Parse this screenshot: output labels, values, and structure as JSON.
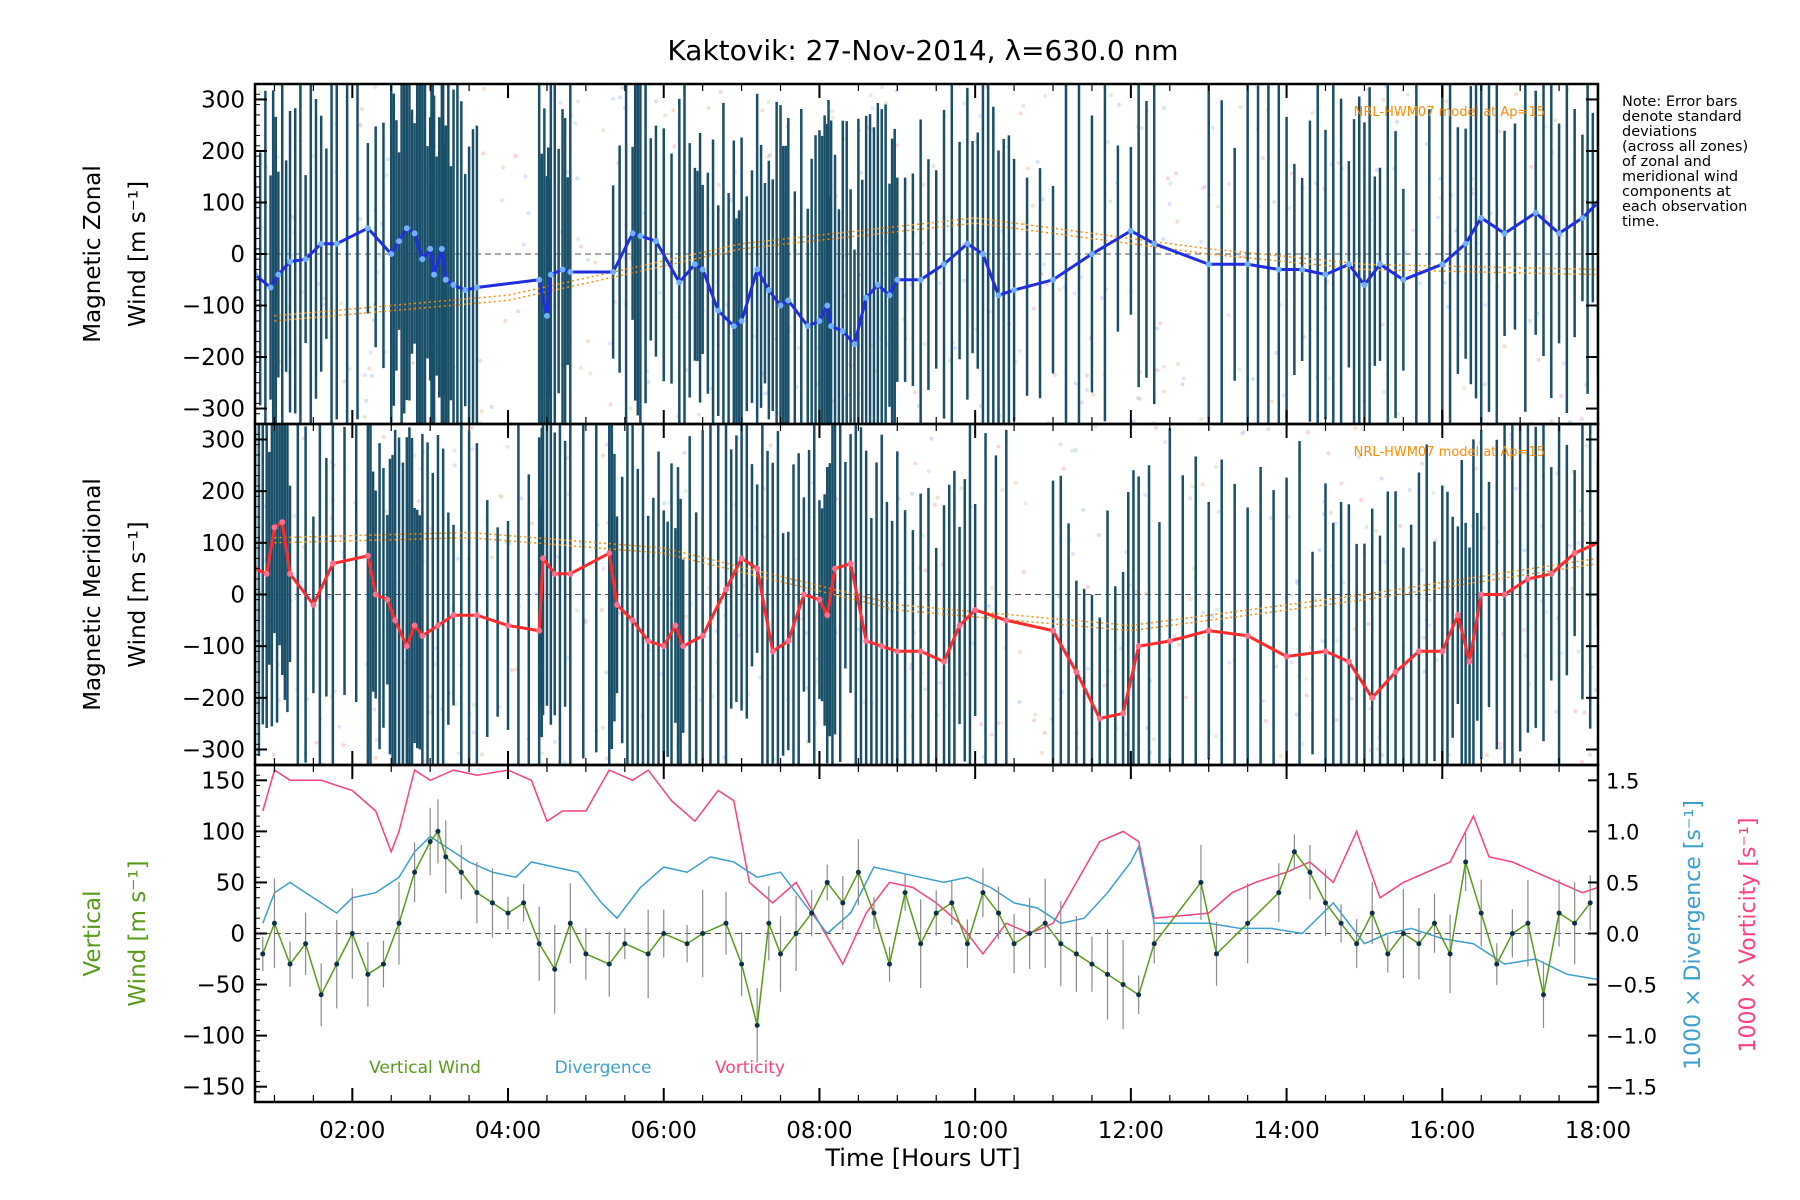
{
  "chart_data": {
    "title": "Kaktovik: 27-Nov-2014, λ=630.0 nm",
    "note": "Note: Error bars\ndenote standard\ndeviations\n(across all zones)\nof zonal and\nmeridional wind\ncomponents at\neach observation\ntime.",
    "xlabel": "Time [Hours UT]",
    "xlim_hours": [
      0.75,
      18.0
    ],
    "xticks": [
      "02:00",
      "04:00",
      "06:00",
      "08:00",
      "10:00",
      "12:00",
      "14:00",
      "16:00",
      "18:00"
    ],
    "colors": {
      "zonal": "#1f2fe0",
      "zonal_points": "#6fb0ff",
      "meridional": "#ff2a2a",
      "meridional_points": "#ff6f8a",
      "vertical": "#5a9a1a",
      "divergence": "#3aa0d0",
      "vorticity": "#ff3f7f",
      "errbar": "#1a4f6a",
      "model": "#ff8c00",
      "vert_err": "#8a8a8a"
    },
    "panels": [
      {
        "type": "line",
        "ylabel": [
          "Magnetic Zonal",
          "Wind [m s⁻¹]"
        ],
        "ylim": [
          -330,
          330
        ],
        "yticks": [
          "300",
          "200",
          "100",
          "0",
          "−100",
          "−200",
          "−300"
        ],
        "model_label": "NRL-HWM07 model at Ap=15",
        "series": [
          {
            "name": "Zonal wind",
            "x": [
              0.75,
              0.95,
              1.05,
              1.2,
              1.4,
              1.6,
              1.8,
              2.2,
              2.5,
              2.6,
              2.7,
              2.8,
              2.9,
              3.0,
              3.05,
              3.15,
              3.2,
              3.3,
              3.45,
              3.6,
              4.4,
              4.5,
              4.55,
              4.7,
              4.8,
              5.35,
              5.6,
              5.7,
              5.9,
              6.2,
              6.4,
              6.5,
              6.7,
              6.9,
              7.0,
              7.2,
              7.35,
              7.5,
              7.6,
              7.85,
              8.0,
              8.1,
              8.15,
              8.3,
              8.45,
              8.6,
              8.75,
              8.9,
              9.0,
              9.3,
              9.6,
              9.9,
              10.1,
              10.3,
              10.5,
              11.0,
              11.5,
              12.0,
              12.3,
              13.0,
              13.5,
              13.9,
              14.2,
              14.5,
              14.8,
              15.0,
              15.2,
              15.5,
              16.0,
              16.3,
              16.5,
              16.8,
              17.2,
              17.5,
              17.8,
              18.0
            ],
            "y": [
              -40,
              -65,
              -40,
              -15,
              -10,
              20,
              20,
              50,
              0,
              25,
              50,
              40,
              -10,
              10,
              -40,
              10,
              -50,
              -60,
              -70,
              -65,
              -50,
              -120,
              -40,
              -30,
              -35,
              -35,
              40,
              35,
              25,
              -55,
              -20,
              -30,
              -110,
              -140,
              -130,
              -30,
              -70,
              -100,
              -90,
              -140,
              -130,
              -100,
              -140,
              -150,
              -175,
              -85,
              -60,
              -80,
              -50,
              -50,
              -20,
              20,
              0,
              -80,
              -70,
              -50,
              0,
              45,
              20,
              -20,
              -20,
              -30,
              -30,
              -40,
              -20,
              -60,
              -20,
              -50,
              -20,
              20,
              70,
              40,
              80,
              40,
              70,
              100
            ]
          }
        ],
        "model_lines": [
          {
            "x": [
              1.0,
              4.0,
              7.0,
              10.0,
              13.0,
              15.0,
              18.0
            ],
            "y": [
              -120,
              -80,
              20,
              70,
              10,
              -20,
              -30
            ]
          },
          {
            "x": [
              1.0,
              4.0,
              7.0,
              10.0,
              13.0,
              15.0,
              18.0
            ],
            "y": [
              -130,
              -90,
              10,
              60,
              0,
              -30,
              -40
            ]
          }
        ]
      },
      {
        "type": "line",
        "ylabel": [
          "Magnetic Meridional",
          "Wind [m s⁻¹]"
        ],
        "ylim": [
          -330,
          330
        ],
        "yticks": [
          "300",
          "200",
          "100",
          "0",
          "−100",
          "−200",
          "−300"
        ],
        "model_label": "NRL-HWM07 model at Ap=15",
        "series": [
          {
            "name": "Meridional wind",
            "x": [
              0.75,
              0.9,
              1.0,
              1.1,
              1.2,
              1.5,
              1.75,
              2.2,
              2.3,
              2.45,
              2.55,
              2.7,
              2.8,
              2.9,
              3.1,
              3.3,
              3.6,
              4.0,
              4.4,
              4.45,
              4.6,
              4.8,
              5.3,
              5.4,
              5.6,
              5.8,
              6.0,
              6.15,
              6.25,
              6.5,
              6.8,
              7.0,
              7.2,
              7.4,
              7.6,
              7.8,
              8.0,
              8.1,
              8.2,
              8.4,
              8.6,
              8.8,
              9.0,
              9.3,
              9.6,
              9.8,
              10.0,
              10.4,
              11.0,
              11.3,
              11.6,
              11.9,
              12.1,
              12.5,
              13.0,
              13.5,
              14.0,
              14.5,
              14.8,
              15.1,
              15.4,
              15.7,
              16.0,
              16.2,
              16.35,
              16.5,
              16.8,
              17.1,
              17.4,
              17.7,
              18.0
            ],
            "y": [
              50,
              40,
              130,
              140,
              40,
              -20,
              60,
              75,
              0,
              -10,
              -50,
              -100,
              -60,
              -80,
              -60,
              -40,
              -40,
              -60,
              -70,
              70,
              40,
              40,
              80,
              -20,
              -50,
              -90,
              -100,
              -60,
              -100,
              -80,
              10,
              70,
              50,
              -110,
              -90,
              0,
              -10,
              -40,
              50,
              60,
              -90,
              -100,
              -110,
              -110,
              -130,
              -60,
              -30,
              -50,
              -70,
              -150,
              -240,
              -230,
              -100,
              -90,
              -70,
              -80,
              -120,
              -110,
              -130,
              -200,
              -150,
              -110,
              -110,
              -40,
              -130,
              0,
              0,
              30,
              40,
              80,
              100
            ]
          }
        ],
        "model_lines": [
          {
            "x": [
              1.0,
              3.5,
              6.0,
              9.0,
              12.0,
              15.0,
              18.0
            ],
            "y": [
              100,
              110,
              80,
              -30,
              -70,
              -10,
              60
            ]
          },
          {
            "x": [
              1.0,
              3.5,
              6.0,
              9.0,
              12.0,
              15.0,
              18.0
            ],
            "y": [
              110,
              120,
              90,
              -20,
              -60,
              0,
              70
            ]
          }
        ]
      },
      {
        "type": "line",
        "ylabel": [
          "Vertical",
          "Wind [m s⁻¹]"
        ],
        "ylim": [
          -165,
          165
        ],
        "yticks": [
          "150",
          "100",
          "50",
          "0",
          "−50",
          "−100",
          "−150"
        ],
        "y2label_div": "1000 × Divergence [s⁻¹]",
        "y2label_vor": "1000 × Vorticity [s⁻¹]",
        "y2lim": [
          -1.65,
          1.65
        ],
        "y2ticks": [
          "1.5",
          "1.0",
          "0.5",
          "0.0",
          "−0.5",
          "−1.0",
          "−1.5"
        ],
        "legend": [
          "Vertical Wind",
          "Divergence",
          "Vorticity"
        ],
        "series": [
          {
            "name": "Vertical Wind",
            "x": [
              0.85,
              1.0,
              1.2,
              1.4,
              1.6,
              1.8,
              2.0,
              2.2,
              2.4,
              2.6,
              2.8,
              3.0,
              3.1,
              3.2,
              3.4,
              3.6,
              3.8,
              4.0,
              4.2,
              4.4,
              4.6,
              4.8,
              5.0,
              5.3,
              5.5,
              5.8,
              6.0,
              6.3,
              6.5,
              6.8,
              7.0,
              7.2,
              7.35,
              7.5,
              7.7,
              7.9,
              8.1,
              8.3,
              8.5,
              8.7,
              8.9,
              9.1,
              9.3,
              9.5,
              9.7,
              9.9,
              10.1,
              10.3,
              10.5,
              10.7,
              10.9,
              11.1,
              11.3,
              11.5,
              11.7,
              11.9,
              12.1,
              12.3,
              12.9,
              13.1,
              13.5,
              13.9,
              14.1,
              14.3,
              14.5,
              14.7,
              14.9,
              15.1,
              15.3,
              15.5,
              15.7,
              15.9,
              16.1,
              16.3,
              16.5,
              16.7,
              16.9,
              17.1,
              17.3,
              17.5,
              17.7,
              17.9
            ],
            "y": [
              -20,
              10,
              -30,
              -10,
              -60,
              -30,
              0,
              -40,
              -30,
              10,
              60,
              90,
              100,
              75,
              60,
              40,
              30,
              20,
              30,
              -10,
              -35,
              10,
              -20,
              -30,
              -10,
              -20,
              0,
              -10,
              0,
              10,
              -30,
              -90,
              10,
              -20,
              0,
              20,
              50,
              30,
              60,
              20,
              -30,
              40,
              -10,
              20,
              30,
              -10,
              40,
              20,
              -10,
              0,
              10,
              -10,
              -20,
              -30,
              -40,
              -50,
              -60,
              -10,
              50,
              -20,
              10,
              40,
              80,
              60,
              30,
              10,
              -10,
              20,
              -20,
              0,
              -10,
              10,
              -20,
              70,
              20,
              -30,
              0,
              10,
              -60,
              20,
              10,
              30
            ]
          },
          {
            "name": "Divergence",
            "x": [
              0.85,
              1.0,
              1.2,
              1.4,
              1.6,
              1.8,
              2.0,
              2.3,
              2.6,
              2.8,
              3.0,
              3.2,
              3.5,
              3.8,
              4.1,
              4.3,
              4.6,
              4.9,
              5.2,
              5.4,
              5.7,
              6.0,
              6.3,
              6.6,
              6.9,
              7.2,
              7.5,
              7.8,
              8.1,
              8.4,
              8.7,
              9.0,
              9.3,
              9.6,
              9.9,
              10.2,
              10.5,
              10.8,
              11.1,
              11.4,
              11.7,
              12.0,
              12.1,
              12.3,
              12.6,
              13.0,
              13.4,
              13.8,
              14.2,
              14.6,
              15.0,
              15.3,
              15.6,
              16.0,
              16.4,
              16.8,
              17.2,
              17.6,
              18.0
            ],
            "y": [
              0.1,
              0.4,
              0.5,
              0.4,
              0.3,
              0.2,
              0.35,
              0.4,
              0.55,
              0.8,
              0.95,
              0.85,
              0.7,
              0.6,
              0.55,
              0.7,
              0.65,
              0.6,
              0.3,
              0.15,
              0.45,
              0.65,
              0.6,
              0.75,
              0.7,
              0.55,
              0.6,
              0.3,
              0.0,
              0.2,
              0.65,
              0.6,
              0.55,
              0.5,
              0.55,
              0.45,
              0.3,
              0.25,
              0.1,
              0.15,
              0.4,
              0.7,
              0.85,
              0.1,
              0.1,
              0.1,
              0.05,
              0.05,
              0.0,
              0.3,
              -0.1,
              0.0,
              0.05,
              -0.05,
              -0.1,
              -0.3,
              -0.25,
              -0.4,
              -0.45
            ]
          },
          {
            "name": "Vorticity",
            "x": [
              0.85,
              1.0,
              1.2,
              1.6,
              2.0,
              2.3,
              2.5,
              2.6,
              2.8,
              3.0,
              3.3,
              3.6,
              4.0,
              4.3,
              4.5,
              4.7,
              5.0,
              5.3,
              5.6,
              5.8,
              6.1,
              6.4,
              6.7,
              6.9,
              7.1,
              7.4,
              7.7,
              8.0,
              8.3,
              8.6,
              8.9,
              9.2,
              9.5,
              9.8,
              10.1,
              10.4,
              10.7,
              11.0,
              11.3,
              11.6,
              11.9,
              12.1,
              12.3,
              13.0,
              13.3,
              13.6,
              14.0,
              14.3,
              14.6,
              14.9,
              15.2,
              15.5,
              15.8,
              16.1,
              16.4,
              16.6,
              16.9,
              17.2,
              17.5,
              17.8,
              18.0
            ],
            "y": [
              1.2,
              1.6,
              1.5,
              1.5,
              1.4,
              1.2,
              0.8,
              1.0,
              1.6,
              1.5,
              1.6,
              1.55,
              1.6,
              1.5,
              1.1,
              1.2,
              1.2,
              1.6,
              1.5,
              1.6,
              1.3,
              1.1,
              1.4,
              1.3,
              0.5,
              0.3,
              0.5,
              0.1,
              -0.3,
              0.2,
              0.5,
              0.45,
              0.3,
              0.1,
              -0.2,
              0.1,
              0.0,
              0.1,
              0.5,
              0.9,
              1.0,
              0.9,
              0.15,
              0.2,
              0.4,
              0.5,
              0.6,
              0.7,
              0.5,
              1.0,
              0.35,
              0.5,
              0.6,
              0.7,
              1.15,
              0.75,
              0.7,
              0.6,
              0.5,
              0.4,
              0.45
            ]
          }
        ]
      }
    ]
  }
}
